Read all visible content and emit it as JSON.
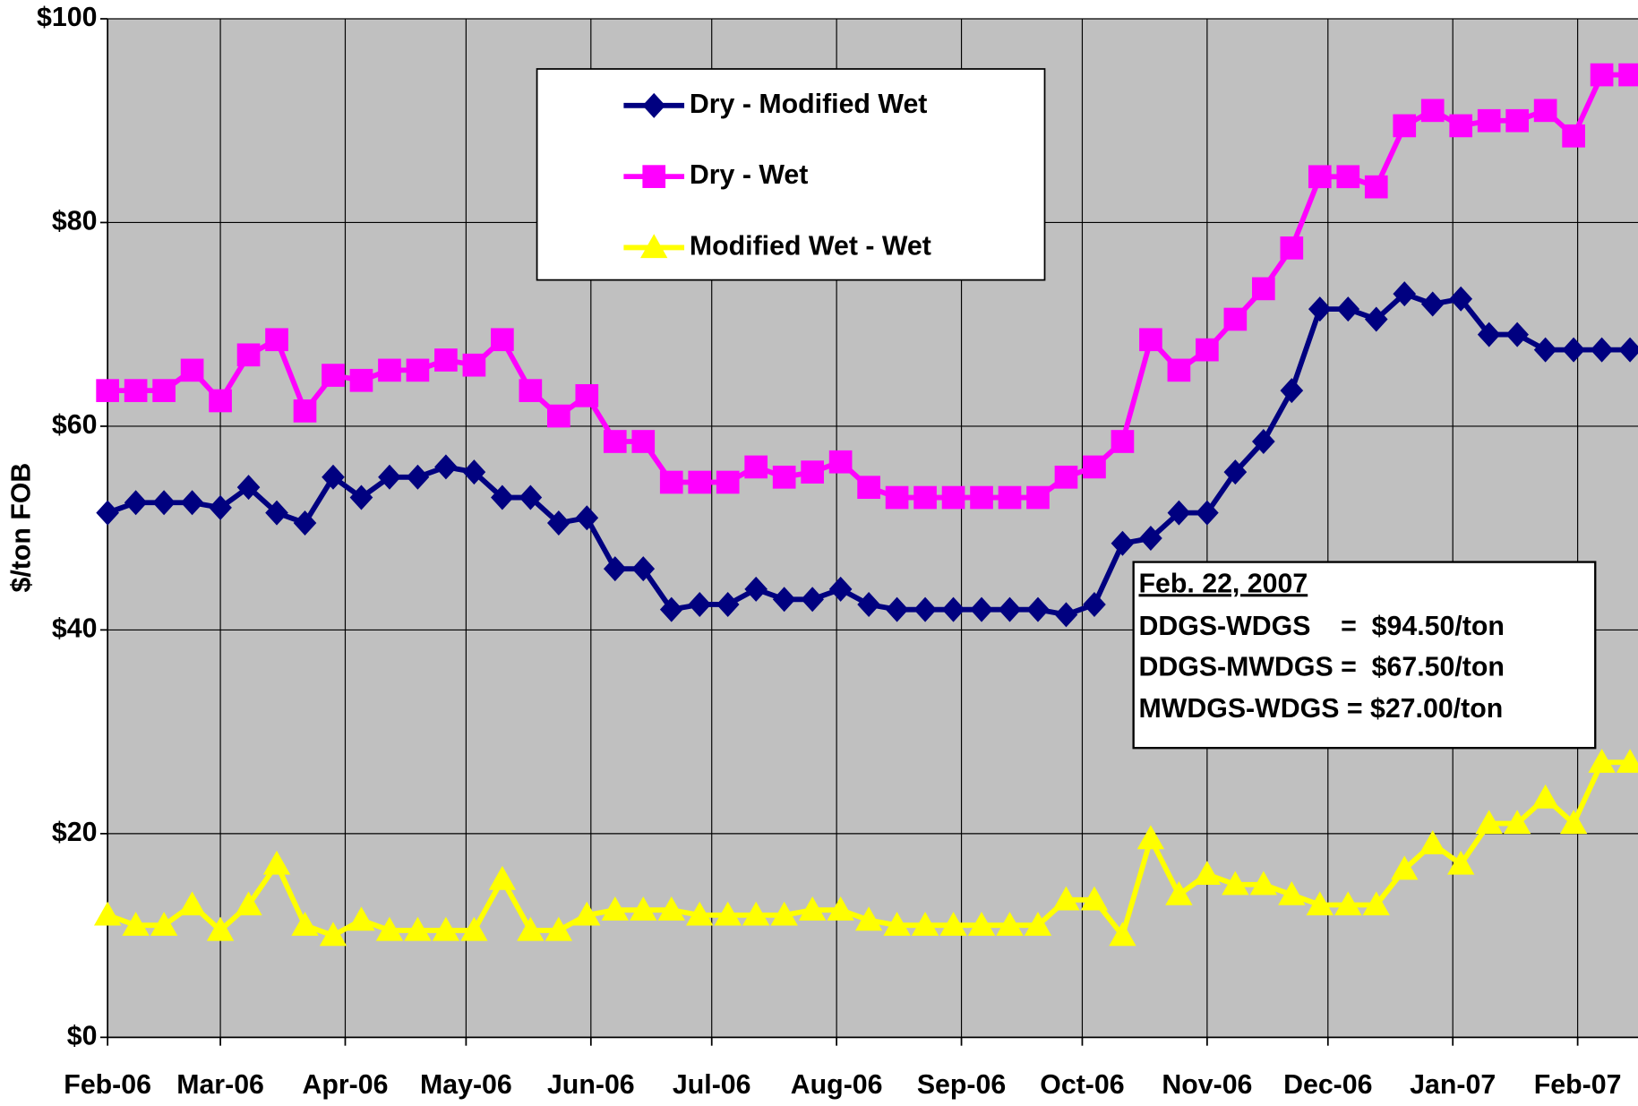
{
  "chart_data": {
    "type": "line",
    "y_label": "$/ton FOB",
    "x": [
      0,
      7,
      14,
      21,
      28,
      35,
      42,
      49,
      56,
      63,
      70,
      77,
      84,
      91,
      98,
      105,
      112,
      119,
      126,
      133,
      140,
      147,
      154,
      161,
      168,
      175,
      182,
      189,
      196,
      203,
      210,
      217,
      224,
      231,
      238,
      245,
      252,
      259,
      266,
      273,
      280,
      287,
      294,
      301,
      308,
      315,
      322,
      329,
      336,
      343,
      350,
      357,
      364,
      371,
      378
    ],
    "xlim": [
      0,
      380
    ],
    "xticks": [
      {
        "value": 0,
        "label": "Feb-06"
      },
      {
        "value": 28,
        "label": "Mar-06"
      },
      {
        "value": 59,
        "label": "Apr-06"
      },
      {
        "value": 89,
        "label": "May-06"
      },
      {
        "value": 120,
        "label": "Jun-06"
      },
      {
        "value": 150,
        "label": "Jul-06"
      },
      {
        "value": 181,
        "label": "Aug-06"
      },
      {
        "value": 212,
        "label": "Sep-06"
      },
      {
        "value": 242,
        "label": "Oct-06"
      },
      {
        "value": 273,
        "label": "Nov-06"
      },
      {
        "value": 303,
        "label": "Dec-06"
      },
      {
        "value": 334,
        "label": "Jan-07"
      },
      {
        "value": 365,
        "label": "Feb-07"
      }
    ],
    "ylim": [
      0,
      100
    ],
    "yticks": [
      {
        "value": 0,
        "label": "$0"
      },
      {
        "value": 20,
        "label": "$20"
      },
      {
        "value": 40,
        "label": "$40"
      },
      {
        "value": 60,
        "label": "$60"
      },
      {
        "value": 80,
        "label": "$80"
      },
      {
        "value": 100,
        "label": "$100"
      }
    ],
    "grid": true,
    "background": "#c0c0c0",
    "series": [
      {
        "name": "Dry - Modified Wet",
        "color": "#000080",
        "marker": "diamond",
        "values": [
          51.5,
          52.5,
          52.5,
          52.5,
          52,
          54,
          51.5,
          50.5,
          55,
          53,
          55,
          55,
          56,
          55.5,
          53,
          53,
          50.5,
          51,
          46,
          46,
          42,
          42.5,
          42.5,
          44,
          43,
          43,
          44,
          42.5,
          42,
          42,
          42,
          42,
          42,
          42,
          41.5,
          42.5,
          48.5,
          49,
          51.5,
          51.5,
          55.5,
          58.5,
          63.5,
          71.5,
          71.5,
          70.5,
          73,
          72,
          72.5,
          69,
          69,
          67.5,
          67.5,
          67.5,
          67.5
        ]
      },
      {
        "name": "Dry - Wet",
        "color": "#ff00ff",
        "marker": "square",
        "values": [
          63.5,
          63.5,
          63.5,
          65.5,
          62.5,
          67,
          68.5,
          61.5,
          65,
          64.5,
          65.5,
          65.5,
          66.5,
          66,
          68.5,
          63.5,
          61,
          63,
          58.5,
          58.5,
          54.5,
          54.5,
          54.5,
          56,
          55,
          55.5,
          56.5,
          54,
          53,
          53,
          53,
          53,
          53,
          53,
          55,
          56,
          58.5,
          68.5,
          65.5,
          67.5,
          70.5,
          73.5,
          77.5,
          84.5,
          84.5,
          83.5,
          89.5,
          91,
          89.5,
          90,
          90,
          91,
          88.5,
          94.5,
          94.5
        ]
      },
      {
        "name": "Modified Wet - Wet",
        "color": "#ffff00",
        "marker": "triangle",
        "values": [
          12,
          11,
          11,
          13,
          10.5,
          13,
          17,
          11,
          10,
          11.5,
          10.5,
          10.5,
          10.5,
          10.5,
          15.5,
          10.5,
          10.5,
          12,
          12.5,
          12.5,
          12.5,
          12,
          12,
          12,
          12,
          12.5,
          12.5,
          11.5,
          11,
          11,
          11,
          11,
          11,
          11,
          13.5,
          13.5,
          10,
          19.5,
          14,
          16,
          15,
          15,
          14,
          13,
          13,
          13,
          16.5,
          19,
          17,
          21,
          21,
          23.5,
          21,
          27,
          27
        ]
      }
    ],
    "annotation": {
      "title": "Feb. 22, 2007",
      "lines": [
        "DDGS-WDGS    =  $94.50/ton",
        "DDGS-MWDGS =  $67.50/ton",
        "MWDGS-WDGS = $27.00/ton"
      ]
    }
  }
}
